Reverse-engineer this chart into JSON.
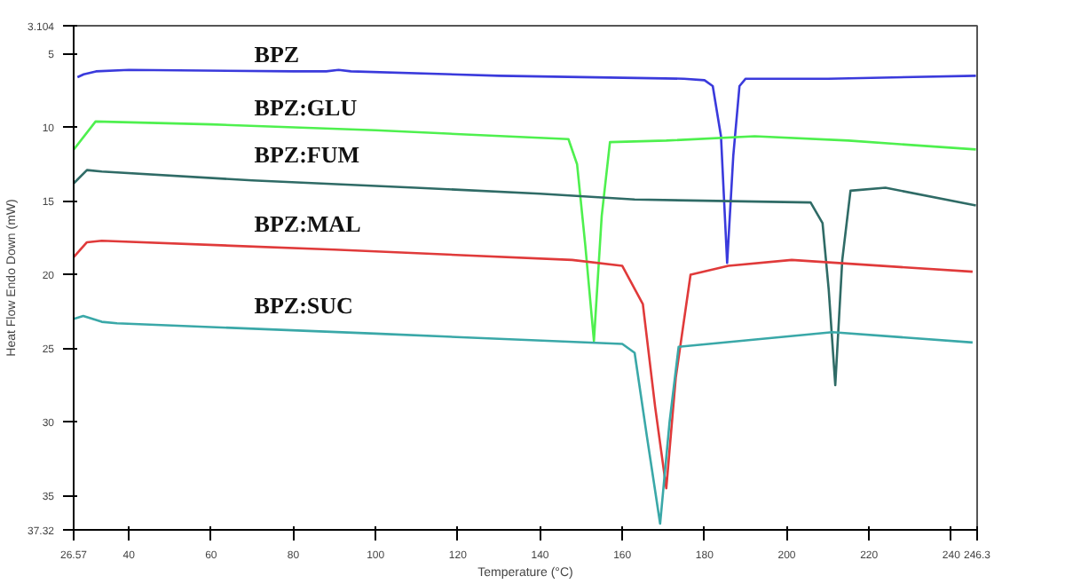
{
  "chart_data": {
    "type": "line",
    "xlabel": "Temperature (°C)",
    "ylabel": "Heat Flow Endo Down (mW)",
    "xlim": [
      26.57,
      246.3
    ],
    "ylim": [
      37.32,
      3.104
    ],
    "xticks": [
      26.57,
      40,
      60,
      80,
      100,
      120,
      140,
      160,
      180,
      200,
      220,
      240,
      246.3
    ],
    "yticks": [
      3.104,
      5,
      10,
      15,
      20,
      25,
      30,
      35,
      37.32
    ],
    "grid": false,
    "marker": "none",
    "line_style": "solid",
    "series": [
      {
        "name": "BPZ",
        "color": "#3a3adc",
        "x": [
          27.5,
          29,
          32,
          40,
          80,
          88,
          91,
          94,
          130,
          175,
          180,
          182,
          184,
          185.5,
          187,
          188.5,
          190,
          210,
          246
        ],
        "values": [
          6.6,
          6.4,
          6.2,
          6.1,
          6.2,
          6.2,
          6.1,
          6.2,
          6.5,
          6.7,
          6.8,
          7.2,
          10.6,
          19.2,
          11.9,
          7.2,
          6.7,
          6.7,
          6.5
        ]
      },
      {
        "name": "BPZ:GLU",
        "color": "#4ef04e",
        "x": [
          26.6,
          31.9,
          60,
          100,
          146.9,
          149,
          151,
          153.1,
          155,
          157,
          170.7,
          192.2,
          215,
          246
        ],
        "values": [
          11.5,
          9.6,
          9.8,
          10.2,
          10.8,
          12.5,
          18,
          24.5,
          16,
          11.0,
          10.9,
          10.6,
          10.9,
          11.5
        ]
      },
      {
        "name": "BPZ:FUM",
        "color": "#2f6b66",
        "x": [
          26.6,
          29.8,
          33.4,
          70,
          109.7,
          140,
          163,
          205.8,
          208.7,
          210.2,
          211.8,
          213.5,
          215.5,
          224,
          246
        ],
        "values": [
          13.8,
          12.9,
          13.0,
          13.6,
          14.1,
          14.5,
          14.9,
          15.1,
          16.5,
          21,
          27.5,
          19,
          14.3,
          14.1,
          15.3
        ]
      },
      {
        "name": "BPZ:MAL",
        "color": "#e03a3a",
        "x": [
          26.6,
          29.8,
          33.4,
          90,
          147.8,
          160,
          165,
          168,
          170.7,
          173,
          176.6,
          185.8,
          201.2,
          245.2
        ],
        "values": [
          18.8,
          17.8,
          17.7,
          18.3,
          19.0,
          19.4,
          22,
          29,
          34.5,
          27,
          20.0,
          19.4,
          19.0,
          19.8
        ]
      },
      {
        "name": "BPZ:SUC",
        "color": "#3aa8a8",
        "x": [
          26.6,
          28.9,
          33.4,
          37.1,
          100,
          160,
          163,
          166,
          169.2,
          171.5,
          173.7,
          211.1,
          245.2
        ],
        "values": [
          23.0,
          22.8,
          23.2,
          23.3,
          24.0,
          24.7,
          25.3,
          31,
          36.9,
          30,
          24.9,
          23.9,
          24.6
        ]
      }
    ]
  }
}
